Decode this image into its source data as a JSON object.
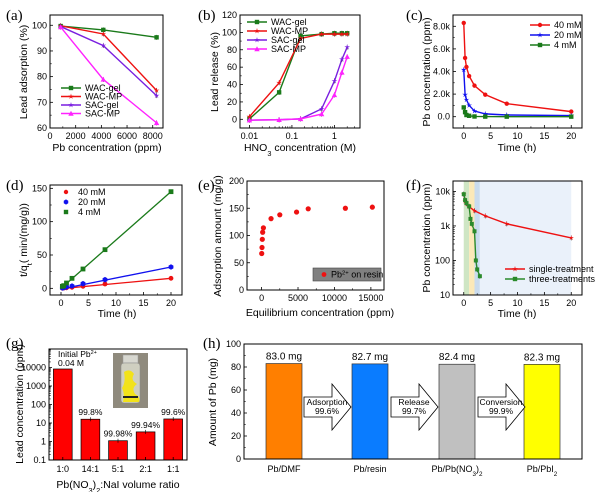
{
  "chart_data": [
    {
      "panel": "(a)",
      "type": "line",
      "xlabel": "Pb concentration (ppm)",
      "ylabel": "Lead adsorption (%)",
      "xlim": [
        0,
        8800
      ],
      "ylim": [
        60,
        104
      ],
      "xticks": [
        0,
        2000,
        4000,
        6000,
        8000
      ],
      "yticks": [
        60,
        70,
        80,
        90,
        100
      ],
      "legend": "bottom-left",
      "x": [
        830,
        4150,
        8300
      ],
      "series": [
        {
          "name": "WAC-gel",
          "color": "#1a7a1a",
          "marker": "square",
          "values": [
            99.7,
            98.2,
            95.3
          ]
        },
        {
          "name": "WAC-MP",
          "color": "#ee1111",
          "marker": "star",
          "values": [
            99.8,
            96.6,
            74.6
          ]
        },
        {
          "name": "SAC-gel",
          "color": "#7a1fe0",
          "marker": "star",
          "values": [
            99.5,
            92.1,
            72.6
          ]
        },
        {
          "name": "SAC-MP",
          "color": "#ff22ff",
          "marker": "triangle",
          "values": [
            99.3,
            78.9,
            62.0
          ]
        }
      ]
    },
    {
      "panel": "(b)",
      "type": "line",
      "xscale": "log",
      "xlabel": "HNO3 concentration (M)",
      "xlabel_main": "HNO",
      "xlabel_sub": "3",
      "xlabel_rest": " concentration (M)",
      "ylabel": "Lead release (%)",
      "xlim": [
        0.006,
        4
      ],
      "ylim": [
        -10,
        120
      ],
      "xticks": [
        0.01,
        0.1,
        1
      ],
      "xticklabels": [
        "0.01",
        "0.1",
        "1"
      ],
      "yticks": [
        0,
        20,
        40,
        60,
        80,
        100,
        120
      ],
      "legend": "top-left",
      "x": [
        0.01,
        0.05,
        0.16,
        0.5,
        1.0,
        1.5,
        2.0
      ],
      "series": [
        {
          "name": "WAC-gel",
          "color": "#1a7a1a",
          "marker": "square",
          "values": [
            0.5,
            31,
            96,
            98,
            99,
            99,
            99
          ]
        },
        {
          "name": "WAC-MP",
          "color": "#ee1111",
          "marker": "star",
          "values": [
            3,
            42,
            93,
            98,
            98,
            98,
            98
          ]
        },
        {
          "name": "SAC-gel",
          "color": "#7a1fe0",
          "marker": "star",
          "values": [
            -1,
            -0.5,
            0.5,
            12,
            44,
            69,
            83
          ]
        },
        {
          "name": "SAC-MP",
          "color": "#ff22ff",
          "marker": "triangle",
          "values": [
            -1,
            -0.5,
            0.5,
            6,
            28,
            54,
            72
          ]
        }
      ]
    },
    {
      "panel": "(c)",
      "type": "line",
      "xlabel": "Time (h)",
      "ylabel": "Pb concentration (ppm)",
      "xlim": [
        -2,
        22
      ],
      "ylim": [
        -1000,
        9000
      ],
      "xticks": [
        0,
        5,
        10,
        15,
        20
      ],
      "yticks": [
        0,
        2000,
        4000,
        6000,
        8000
      ],
      "yticklabels": [
        "0.0",
        "2.0k",
        "4.0k",
        "6.0k",
        "8.0k"
      ],
      "legend": "top-right",
      "series": [
        {
          "name": "40 mM",
          "color": "#ee1111",
          "marker": "circle",
          "x": [
            0,
            0.25,
            0.5,
            1,
            2,
            4,
            8,
            20
          ],
          "values": [
            8300,
            5200,
            4400,
            3600,
            2750,
            1950,
            1150,
            450
          ]
        },
        {
          "name": "20 mM",
          "color": "#1111ee",
          "marker": "star",
          "x": [
            0,
            0.25,
            0.5,
            1,
            2,
            4,
            8,
            20
          ],
          "values": [
            4150,
            1950,
            1500,
            1000,
            500,
            250,
            150,
            100
          ]
        },
        {
          "name": "4 mM",
          "color": "#1a7a1a",
          "marker": "square",
          "x": [
            0,
            0.25,
            0.5,
            1,
            2,
            4,
            8,
            20
          ],
          "values": [
            820,
            400,
            150,
            80,
            20,
            10,
            5,
            5
          ]
        }
      ]
    },
    {
      "panel": "(d)",
      "type": "scatter",
      "xlabel": "Time (h)",
      "ylabel": "t/qt ( min/(mg/g))",
      "ylabel_pre": "t/q",
      "ylabel_sub": "t",
      "ylabel_post": "( min/(mg/g))",
      "xlim": [
        -2,
        22
      ],
      "ylim": [
        -10,
        155
      ],
      "xticks": [
        0,
        5,
        10,
        15,
        20
      ],
      "yticks": [
        0,
        50,
        100,
        150
      ],
      "legend": "top-left",
      "fit_lines": true,
      "series": [
        {
          "name": "40 mM",
          "color": "#ee1111",
          "marker": "circle",
          "x": [
            0.25,
            0.5,
            1,
            2,
            4,
            8,
            20
          ],
          "values": [
            0.2,
            0.4,
            0.8,
            1.5,
            3,
            6.5,
            15
          ],
          "fit": [
            [
              0,
              -0.5
            ],
            [
              20,
              15
            ]
          ]
        },
        {
          "name": "20 mM",
          "color": "#1111ee",
          "marker": "hexagon",
          "x": [
            0.25,
            0.5,
            1,
            2,
            4,
            8,
            20
          ],
          "values": [
            0.5,
            1,
            2,
            3.5,
            7,
            13,
            32
          ],
          "fit": [
            [
              0,
              -1
            ],
            [
              20,
              32
            ]
          ]
        },
        {
          "name": "4 mM",
          "color": "#1a7a1a",
          "marker": "square",
          "x": [
            0.25,
            0.5,
            1,
            2,
            4,
            8,
            20
          ],
          "values": [
            3,
            4,
            8,
            15,
            29,
            58,
            145
          ],
          "fit": [
            [
              0,
              0
            ],
            [
              20,
              145
            ]
          ]
        }
      ]
    },
    {
      "panel": "(e)",
      "type": "scatter",
      "xlabel": "Equilibrium concentration (ppm)",
      "ylabel": "Adsorption amount (mg/g)",
      "xlim": [
        -2000,
        16800
      ],
      "ylim": [
        0,
        200
      ],
      "xticks": [
        0,
        5000,
        10000,
        15000
      ],
      "yticks": [
        0,
        50,
        100,
        150,
        200
      ],
      "legend": "bottom-right",
      "legend_label_main": "Pb",
      "legend_label_sup": "2+",
      "legend_label_rest": " on resin",
      "series": [
        {
          "name": "Pb2+ on resin",
          "color": "#ee1111",
          "marker": "circle",
          "x": [
            20,
            60,
            100,
            150,
            250,
            1300,
            2500,
            4800,
            6400,
            11500,
            15200
          ],
          "values": [
            67,
            78,
            93,
            106,
            114,
            131,
            138,
            143,
            149,
            150,
            152
          ]
        }
      ]
    },
    {
      "panel": "(f)",
      "type": "line",
      "yscale": "log",
      "xlabel": "Time (h)",
      "ylabel": "Pb concentration (ppm)",
      "xlim": [
        -2,
        22
      ],
      "ylim": [
        10,
        20000
      ],
      "xticks": [
        0,
        5,
        10,
        15,
        20
      ],
      "yticks": [
        10,
        100,
        1000,
        10000
      ],
      "yticklabels": [
        "10",
        "100",
        "1k",
        "10k"
      ],
      "legend": "bottom-right",
      "shaded_regions": [
        {
          "from": 0,
          "to": 1,
          "color": "#cfe6c4"
        },
        {
          "from": 1,
          "to": 2,
          "color": "#fbe9b8"
        },
        {
          "from": 2,
          "to": 3,
          "color": "#c9dbee"
        },
        {
          "from": 3,
          "to": 20,
          "color": "#eaf1fa"
        }
      ],
      "series": [
        {
          "name": "single-treatment",
          "color": "#ee1111",
          "marker": "star",
          "x": [
            0,
            0.25,
            0.5,
            1,
            2,
            4,
            8,
            20
          ],
          "values": [
            8300,
            5200,
            4400,
            3600,
            2750,
            1950,
            1150,
            450
          ]
        },
        {
          "name": "three-treatments",
          "color": "#2a8a2a",
          "marker": "square",
          "x": [
            0,
            0.25,
            0.5,
            1,
            1.25,
            1.5,
            2,
            2.25,
            2.5,
            3
          ],
          "values": [
            8300,
            5600,
            4600,
            3700,
            1600,
            1150,
            700,
            100,
            55,
            35
          ]
        }
      ]
    },
    {
      "panel": "(g)",
      "type": "bar",
      "yscale": "log",
      "xlabel": "Pb(NO3)2:NaI volume ratio",
      "xlabel_a": "Pb(NO",
      "xlabel_sub1": "3",
      "xlabel_b": ")",
      "xlabel_sub2": "2",
      "xlabel_c": ":NaI volume ratio",
      "ylabel": "Lead concentration (ppm)",
      "ylim": [
        0.1,
        100000
      ],
      "yticks": [
        0.1,
        1,
        10,
        100,
        1000,
        10000
      ],
      "yticklabels": [
        "0.1",
        "1",
        "10",
        "100",
        "1000",
        "10000"
      ],
      "categories": [
        "1:0",
        "14:1",
        "5:1",
        "2:1",
        "1:1"
      ],
      "values": [
        8300,
        16,
        1.1,
        3.3,
        16.5
      ],
      "data_labels": [
        "",
        "99.8%",
        "99.98%",
        "99.94%",
        "99.6%"
      ],
      "bar_color": "#ff0000",
      "annotation_line1": "Initial Pb",
      "annotation_sup": "2+",
      "annotation_line2": "0.04 M",
      "inset": "photo of vial with yellow PbI2 precipitate"
    },
    {
      "panel": "(h)",
      "type": "bar",
      "xlabel": "",
      "ylabel": "Amount of Pb (mg)",
      "ylim": [
        0,
        100
      ],
      "yticks": [
        0,
        20,
        40,
        60,
        80,
        100
      ],
      "categories": [
        "Pb/DMF",
        "Pb/resin",
        "Pb/Pb(NO3)2",
        "Pb/PbI2"
      ],
      "values": [
        83.0,
        82.7,
        82.4,
        82.3
      ],
      "data_labels": [
        "83.0 mg",
        "82.7 mg",
        "82.4 mg",
        "82.3 mg"
      ],
      "bar_colors": [
        "#ff7f00",
        "#0a7cff",
        "#c0c0c0",
        "#ffff00"
      ],
      "arrows": [
        {
          "label": "Adsorption",
          "value": "99.6%"
        },
        {
          "label": "Release",
          "value": "99.7%"
        },
        {
          "label": "Conversion",
          "value": "99.9%"
        }
      ]
    }
  ]
}
